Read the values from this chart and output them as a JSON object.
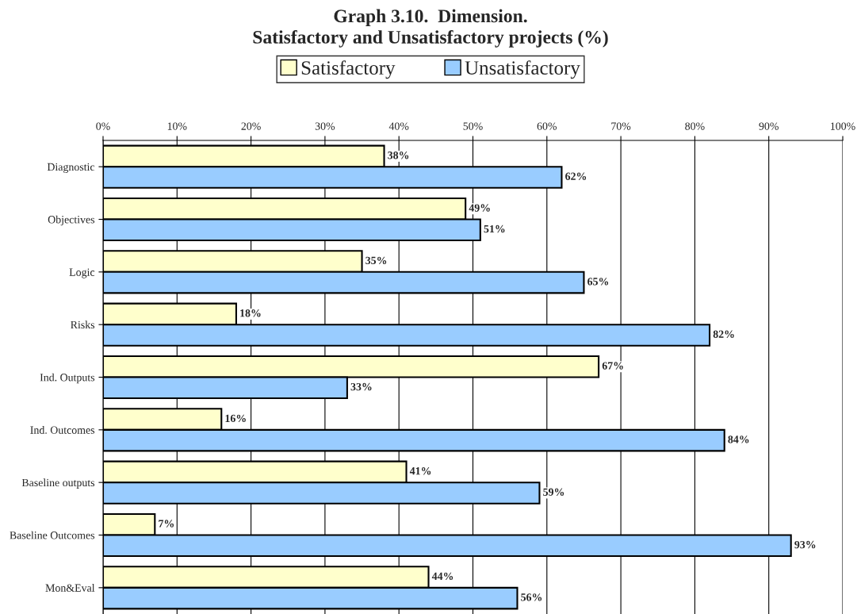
{
  "chart_data": {
    "type": "bar",
    "orientation": "horizontal",
    "title": "Graph 3.10.  Dimension.\nSatisfactory and Unsatisfactory projects (%)",
    "categories": [
      "Diagnostic",
      "Objectives",
      "Logic",
      "Risks",
      "Ind. Outputs",
      "Ind. Outcomes",
      "Baseline outputs",
      "Baseline Outcomes",
      "Mon&Eval"
    ],
    "series": [
      {
        "name": "Satisfactory",
        "color": "#ffffcc",
        "values": [
          38,
          49,
          35,
          18,
          67,
          16,
          41,
          7,
          44
        ],
        "value_labels": [
          "38%",
          "49%",
          "35%",
          "18%",
          "67%",
          "16%",
          "41%",
          "7%",
          "44%"
        ]
      },
      {
        "name": "Unsatisfactory",
        "color": "#99ccff",
        "values": [
          62,
          51,
          65,
          82,
          33,
          84,
          59,
          93,
          56
        ],
        "value_labels": [
          "62%",
          "51%",
          "65%",
          "82%",
          "33%",
          "84%",
          "59%",
          "93%",
          "56%"
        ]
      }
    ],
    "xlim": [
      0,
      100
    ],
    "xticks": [
      {
        "value": 0,
        "label": "0%"
      },
      {
        "value": 10,
        "label": "10%"
      },
      {
        "value": 20,
        "label": "20%"
      },
      {
        "value": 30,
        "label": "30%"
      },
      {
        "value": 40,
        "label": "40%"
      },
      {
        "value": 50,
        "label": "50%"
      },
      {
        "value": 60,
        "label": "60%"
      },
      {
        "value": 70,
        "label": "70%"
      },
      {
        "value": 80,
        "label": "80%"
      },
      {
        "value": 90,
        "label": "90%"
      },
      {
        "value": 100,
        "label": "100%"
      }
    ],
    "grid": "x",
    "legend": "top"
  }
}
